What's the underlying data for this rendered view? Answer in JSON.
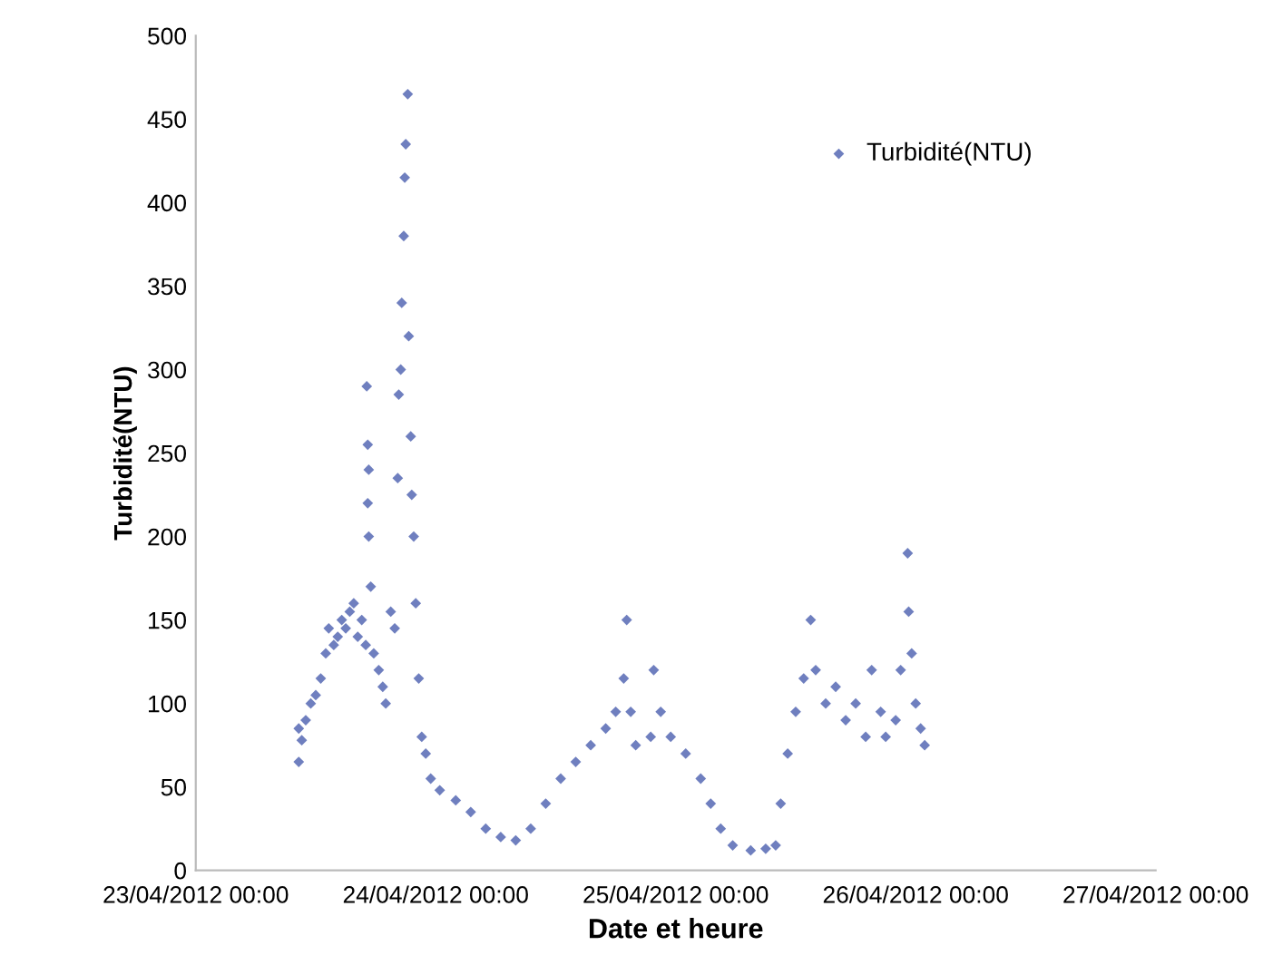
{
  "chart_data": {
    "type": "scatter",
    "xlabel": "Date et heure",
    "ylabel": "Turbidité(NTU)",
    "x": [
      "2012-04-23T10:18",
      "2012-04-23T10:18",
      "2012-04-23T10:36",
      "2012-04-23T11:00",
      "2012-04-23T11:30",
      "2012-04-23T12:00",
      "2012-04-23T12:30",
      "2012-04-23T13:00",
      "2012-04-23T13:18",
      "2012-04-23T13:48",
      "2012-04-23T14:12",
      "2012-04-23T14:36",
      "2012-04-23T15:00",
      "2012-04-23T15:24",
      "2012-04-23T15:48",
      "2012-04-23T16:12",
      "2012-04-23T16:36",
      "2012-04-23T17:00",
      "2012-04-23T17:06",
      "2012-04-23T17:12",
      "2012-04-23T17:18",
      "2012-04-23T17:12",
      "2012-04-23T17:18",
      "2012-04-23T17:30",
      "2012-04-23T17:48",
      "2012-04-23T18:18",
      "2012-04-23T18:42",
      "2012-04-23T19:00",
      "2012-04-23T19:30",
      "2012-04-23T19:54",
      "2012-04-23T20:12",
      "2012-04-23T20:18",
      "2012-04-23T20:30",
      "2012-04-23T20:36",
      "2012-04-23T20:48",
      "2012-04-23T20:54",
      "2012-04-23T21:00",
      "2012-04-23T21:12",
      "2012-04-23T21:18",
      "2012-04-23T21:30",
      "2012-04-23T21:36",
      "2012-04-23T21:48",
      "2012-04-23T22:00",
      "2012-04-23T22:18",
      "2012-04-23T22:36",
      "2012-04-23T23:00",
      "2012-04-23T23:30",
      "2012-04-24T00:24",
      "2012-04-24T02:00",
      "2012-04-24T03:30",
      "2012-04-24T05:00",
      "2012-04-24T06:30",
      "2012-04-24T08:00",
      "2012-04-24T09:30",
      "2012-04-24T11:00",
      "2012-04-24T12:30",
      "2012-04-24T14:00",
      "2012-04-24T15:30",
      "2012-04-24T17:00",
      "2012-04-24T18:00",
      "2012-04-24T18:48",
      "2012-04-24T19:06",
      "2012-04-24T19:30",
      "2012-04-24T20:00",
      "2012-04-24T21:30",
      "2012-04-24T21:48",
      "2012-04-24T22:30",
      "2012-04-24T23:30",
      "2012-04-25T01:00",
      "2012-04-25T02:30",
      "2012-04-25T03:30",
      "2012-04-25T04:30",
      "2012-04-25T05:42",
      "2012-04-25T07:30",
      "2012-04-25T09:00",
      "2012-04-25T10:00",
      "2012-04-25T10:30",
      "2012-04-25T11:12",
      "2012-04-25T12:00",
      "2012-04-25T12:48",
      "2012-04-25T13:30",
      "2012-04-25T14:00",
      "2012-04-25T15:00",
      "2012-04-25T16:00",
      "2012-04-25T17:00",
      "2012-04-25T18:00",
      "2012-04-25T19:00",
      "2012-04-25T19:36",
      "2012-04-25T20:30",
      "2012-04-25T21:00",
      "2012-04-25T22:00",
      "2012-04-25T22:30",
      "2012-04-25T23:12",
      "2012-04-25T23:18",
      "2012-04-25T23:36",
      "2012-04-26T00:00",
      "2012-04-26T00:30",
      "2012-04-26T00:54"
    ],
    "series": [
      {
        "name": "Turbidité(NTU)",
        "color": "#6f7fbf",
        "values": [
          65,
          85,
          78,
          90,
          100,
          105,
          115,
          130,
          145,
          135,
          140,
          150,
          145,
          155,
          160,
          140,
          150,
          135,
          290,
          255,
          240,
          220,
          200,
          170,
          130,
          120,
          110,
          100,
          155,
          145,
          235,
          285,
          300,
          340,
          380,
          415,
          435,
          465,
          320,
          260,
          225,
          200,
          160,
          115,
          80,
          70,
          55,
          48,
          42,
          35,
          25,
          20,
          18,
          25,
          40,
          55,
          65,
          75,
          85,
          95,
          115,
          150,
          95,
          75,
          80,
          120,
          95,
          80,
          70,
          55,
          40,
          25,
          15,
          12,
          13,
          15,
          40,
          70,
          95,
          115,
          150,
          120,
          100,
          110,
          90,
          100,
          80,
          120,
          95,
          80,
          90,
          120,
          190,
          155,
          130,
          100,
          85,
          75
        ]
      }
    ],
    "marker": "diamond",
    "xlim": [
      "2012-04-23T00:00",
      "2012-04-27T00:00"
    ],
    "xticks": [
      {
        "value": "2012-04-23T00:00",
        "label": "23/04/2012 00:00"
      },
      {
        "value": "2012-04-24T00:00",
        "label": "24/04/2012 00:00"
      },
      {
        "value": "2012-04-25T00:00",
        "label": "25/04/2012 00:00"
      },
      {
        "value": "2012-04-26T00:00",
        "label": "26/04/2012 00:00"
      },
      {
        "value": "2012-04-27T00:00",
        "label": "27/04/2012 00:00"
      }
    ],
    "ylim": [
      0,
      500
    ],
    "yticks": [
      0,
      50,
      100,
      150,
      200,
      250,
      300,
      350,
      400,
      450,
      500
    ],
    "grid": false,
    "legend": "top right"
  }
}
